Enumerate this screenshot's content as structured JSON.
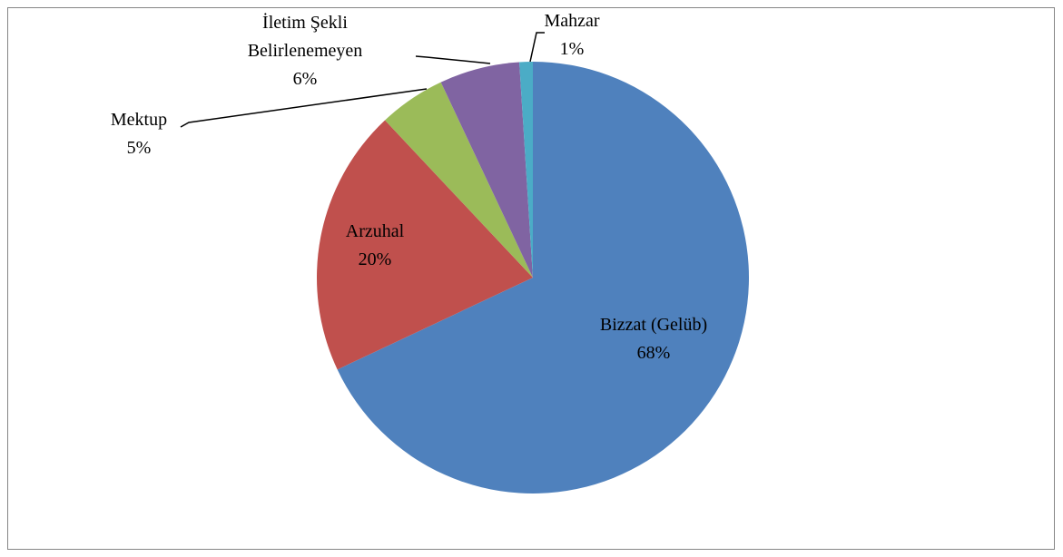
{
  "chart_data": {
    "type": "pie",
    "categories": [
      "Bizzat (Gelüb)",
      "Arzuhal",
      "Mektup",
      "İletim Şekli Belirlenemeyen",
      "Mahzar"
    ],
    "values": [
      68,
      20,
      5,
      6,
      1
    ],
    "value_labels": [
      "68%",
      "20%",
      "5%",
      "6%",
      "1%"
    ],
    "colors": [
      "#4f81bd",
      "#c0504d",
      "#9bbb59",
      "#8064a2",
      "#4bacc6"
    ]
  }
}
